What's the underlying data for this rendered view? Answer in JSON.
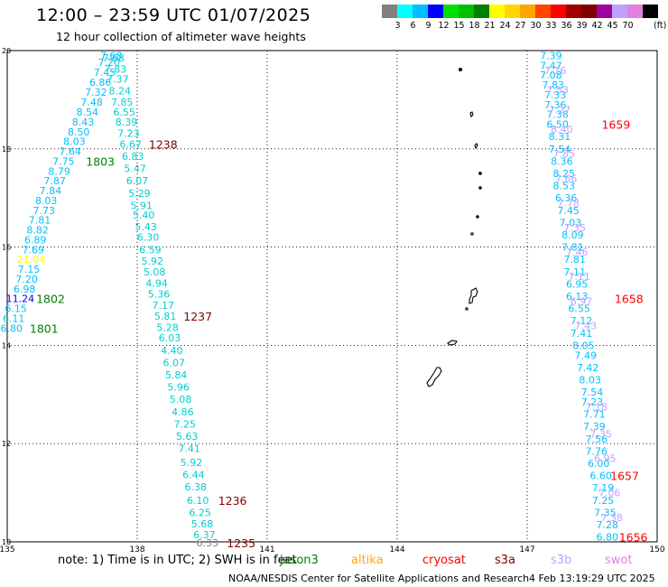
{
  "header": {
    "title": "12:00 – 23:59 UTC 01/07/2025",
    "subtitle": "12 hour collection of altimeter wave heights"
  },
  "colorbar": {
    "colors": [
      "#808080",
      "#00ffff",
      "#00bfff",
      "#0000ff",
      "#00e000",
      "#00c000",
      "#008000",
      "#ffff00",
      "#ffd700",
      "#ffa500",
      "#ff4500",
      "#ff0000",
      "#a00000",
      "#800000",
      "#a000a0",
      "#c0a0ff",
      "#e080e0",
      "#000000"
    ],
    "labels": [
      "3",
      "6",
      "9",
      "12",
      "15",
      "18",
      "21",
      "24",
      "27",
      "30",
      "33",
      "36",
      "39",
      "42",
      "45",
      "70"
    ],
    "unit": "(ft)"
  },
  "footer": {
    "note": "note:  1) Time is in UTC;  2) SWH is in feet",
    "satellites": [
      {
        "name": "jason3",
        "color": "#008000"
      },
      {
        "name": "altika",
        "color": "#ffa500"
      },
      {
        "name": "cryosat",
        "color": "#ff0000"
      },
      {
        "name": "s3a",
        "color": "#800000"
      },
      {
        "name": "s3b",
        "color": "#c0a0ff"
      },
      {
        "name": "swot",
        "color": "#e080e0"
      }
    ],
    "credit": "NOAA/NESDIS Center for Satellite Applications and Research",
    "timestamp": "4 Feb 13:19:29 UTC 2025"
  },
  "chart_data": {
    "type": "scatter",
    "xlim": [
      135,
      150
    ],
    "ylim": [
      10,
      20
    ],
    "x_ticks": [
      "135",
      "138",
      "141",
      "144",
      "147",
      "150"
    ],
    "y_ticks": [
      "10",
      "12",
      "14",
      "16",
      "18",
      "20"
    ],
    "grid": true,
    "tracks": [
      {
        "name": "track-1803-1801",
        "color": "#00bfff",
        "points": [
          {
            "lon": 137.4,
            "lat": 19.9,
            "v": "7.68"
          },
          {
            "lon": 137.35,
            "lat": 19.76,
            "v": "7.20"
          },
          {
            "lon": 137.25,
            "lat": 19.56,
            "v": "7.45"
          },
          {
            "lon": 137.15,
            "lat": 19.36,
            "v": "6.86"
          },
          {
            "lon": 137.05,
            "lat": 19.15,
            "v": "7.32"
          },
          {
            "lon": 136.95,
            "lat": 18.95,
            "v": "7.48"
          },
          {
            "lon": 136.85,
            "lat": 18.75,
            "v": "8.54"
          },
          {
            "lon": 136.75,
            "lat": 18.55,
            "v": "8.43"
          },
          {
            "lon": 136.65,
            "lat": 18.35,
            "v": "8.50"
          },
          {
            "lon": 136.55,
            "lat": 18.15,
            "v": "8.03"
          },
          {
            "lon": 136.45,
            "lat": 17.95,
            "v": "7.64"
          },
          {
            "lon": 136.3,
            "lat": 17.75,
            "v": "7.75"
          },
          {
            "lon": 136.2,
            "lat": 17.55,
            "v": "8.79"
          },
          {
            "lon": 136.1,
            "lat": 17.35,
            "v": "7.87"
          },
          {
            "lon": 136.0,
            "lat": 17.15,
            "v": "7.84"
          },
          {
            "lon": 135.9,
            "lat": 16.95,
            "v": "8.03"
          },
          {
            "lon": 135.85,
            "lat": 16.75,
            "v": "7.73"
          },
          {
            "lon": 135.75,
            "lat": 16.55,
            "v": "7.81"
          },
          {
            "lon": 135.7,
            "lat": 16.35,
            "v": "8.82"
          },
          {
            "lon": 135.65,
            "lat": 16.15,
            "v": "6.89"
          },
          {
            "lon": 135.6,
            "lat": 15.95,
            "v": "7.69"
          },
          {
            "lon": 135.55,
            "lat": 15.75,
            "v": "21.04",
            "c": "#ffff00"
          },
          {
            "lon": 135.5,
            "lat": 15.55,
            "v": "7.15"
          },
          {
            "lon": 135.45,
            "lat": 15.35,
            "v": "7.20"
          },
          {
            "lon": 135.4,
            "lat": 15.15,
            "v": "6.98"
          },
          {
            "lon": 135.3,
            "lat": 14.95,
            "v": "11.24",
            "c": "#0000ff"
          },
          {
            "lon": 135.2,
            "lat": 14.75,
            "v": "6.15"
          },
          {
            "lon": 135.15,
            "lat": 14.55,
            "v": "6.11"
          },
          {
            "lon": 135.1,
            "lat": 14.35,
            "v": "6.80"
          }
        ],
        "labels": [
          {
            "lon": 137.15,
            "lat": 17.75,
            "text": "1803",
            "c": "#008000"
          },
          {
            "lon": 136.0,
            "lat": 14.95,
            "text": "1802",
            "c": "#008000"
          },
          {
            "lon": 135.85,
            "lat": 14.35,
            "text": "1801",
            "c": "#008000"
          }
        ]
      },
      {
        "name": "track-1238-1235",
        "color": "#00ced1",
        "points": [
          {
            "lon": 137.45,
            "lat": 19.85,
            "v": "7.68"
          },
          {
            "lon": 137.5,
            "lat": 19.62,
            "v": "7.83"
          },
          {
            "lon": 137.55,
            "lat": 19.42,
            "v": "7.37"
          },
          {
            "lon": 137.6,
            "lat": 19.18,
            "v": "8.24"
          },
          {
            "lon": 137.65,
            "lat": 18.95,
            "v": "7.85"
          },
          {
            "lon": 137.7,
            "lat": 18.75,
            "v": "6.55"
          },
          {
            "lon": 137.75,
            "lat": 18.55,
            "v": "8.39"
          },
          {
            "lon": 137.8,
            "lat": 18.32,
            "v": "7.23"
          },
          {
            "lon": 137.85,
            "lat": 18.1,
            "v": "6.67"
          },
          {
            "lon": 137.9,
            "lat": 17.85,
            "v": "6.83"
          },
          {
            "lon": 137.95,
            "lat": 17.6,
            "v": "5.47"
          },
          {
            "lon": 138.0,
            "lat": 17.35,
            "v": "6.07"
          },
          {
            "lon": 138.05,
            "lat": 17.1,
            "v": "5.29"
          },
          {
            "lon": 138.1,
            "lat": 16.85,
            "v": "5.91"
          },
          {
            "lon": 138.15,
            "lat": 16.65,
            "v": "5.40"
          },
          {
            "lon": 138.2,
            "lat": 16.42,
            "v": "5.43"
          },
          {
            "lon": 138.25,
            "lat": 16.2,
            "v": "6.30"
          },
          {
            "lon": 138.3,
            "lat": 15.95,
            "v": "6.59"
          },
          {
            "lon": 138.35,
            "lat": 15.72,
            "v": "5.92"
          },
          {
            "lon": 138.4,
            "lat": 15.5,
            "v": "5.08"
          },
          {
            "lon": 138.45,
            "lat": 15.27,
            "v": "4.94"
          },
          {
            "lon": 138.5,
            "lat": 15.05,
            "v": "5.36"
          },
          {
            "lon": 138.6,
            "lat": 14.82,
            "v": "7.17"
          },
          {
            "lon": 138.65,
            "lat": 14.6,
            "v": "5.81"
          },
          {
            "lon": 138.7,
            "lat": 14.37,
            "v": "5.28"
          },
          {
            "lon": 138.75,
            "lat": 14.15,
            "v": "6.03"
          },
          {
            "lon": 138.8,
            "lat": 13.9,
            "v": "4.40"
          },
          {
            "lon": 138.85,
            "lat": 13.65,
            "v": "6.07"
          },
          {
            "lon": 138.9,
            "lat": 13.4,
            "v": "5.84"
          },
          {
            "lon": 138.95,
            "lat": 13.15,
            "v": "5.96"
          },
          {
            "lon": 139.0,
            "lat": 12.9,
            "v": "5.08"
          },
          {
            "lon": 139.05,
            "lat": 12.65,
            "v": "4.86"
          },
          {
            "lon": 139.1,
            "lat": 12.4,
            "v": "7.25"
          },
          {
            "lon": 139.15,
            "lat": 12.15,
            "v": "5.63"
          },
          {
            "lon": 139.2,
            "lat": 11.9,
            "v": "7.41"
          },
          {
            "lon": 139.25,
            "lat": 11.62,
            "v": "5.92"
          },
          {
            "lon": 139.3,
            "lat": 11.37,
            "v": "6.44"
          },
          {
            "lon": 139.35,
            "lat": 11.12,
            "v": "6.38"
          },
          {
            "lon": 139.4,
            "lat": 10.85,
            "v": "6.10"
          },
          {
            "lon": 139.45,
            "lat": 10.6,
            "v": "6.25"
          },
          {
            "lon": 139.5,
            "lat": 10.37,
            "v": "5.68"
          },
          {
            "lon": 139.55,
            "lat": 10.15,
            "v": "6.37"
          },
          {
            "lon": 139.62,
            "lat": 9.98,
            "v": "6.33",
            "c": "#808080"
          }
        ],
        "labels": [
          {
            "lon": 138.6,
            "lat": 18.1,
            "text": "1238",
            "c": "#800000"
          },
          {
            "lon": 139.4,
            "lat": 14.6,
            "text": "1237",
            "c": "#800000"
          },
          {
            "lon": 140.2,
            "lat": 10.85,
            "text": "1236",
            "c": "#800000"
          },
          {
            "lon": 140.4,
            "lat": 9.98,
            "text": "1235",
            "c": "#800000"
          }
        ]
      },
      {
        "name": "track-1659-1656-a",
        "color": "#00bfff",
        "points": [
          {
            "lon": 147.55,
            "lat": 19.9,
            "v": "7.39"
          },
          {
            "lon": 147.55,
            "lat": 19.7,
            "v": "7.47"
          },
          {
            "lon": 147.55,
            "lat": 19.5,
            "v": "7.08"
          },
          {
            "lon": 147.6,
            "lat": 19.3,
            "v": "7.83"
          },
          {
            "lon": 147.65,
            "lat": 19.1,
            "v": "7.33"
          },
          {
            "lon": 147.65,
            "lat": 18.9,
            "v": "7.36"
          },
          {
            "lon": 147.7,
            "lat": 18.7,
            "v": "7.38"
          },
          {
            "lon": 147.7,
            "lat": 18.5,
            "v": "6.50"
          },
          {
            "lon": 147.75,
            "lat": 18.25,
            "v": "8.31"
          },
          {
            "lon": 147.75,
            "lat": 18.0,
            "v": "7.54"
          },
          {
            "lon": 147.8,
            "lat": 17.75,
            "v": "8.36"
          },
          {
            "lon": 147.85,
            "lat": 17.5,
            "v": "8.25"
          },
          {
            "lon": 147.85,
            "lat": 17.25,
            "v": "8.53"
          },
          {
            "lon": 147.9,
            "lat": 17.0,
            "v": "6.36"
          },
          {
            "lon": 147.95,
            "lat": 16.75,
            "v": "7.45"
          },
          {
            "lon": 148.0,
            "lat": 16.5,
            "v": "7.03"
          },
          {
            "lon": 148.05,
            "lat": 16.25,
            "v": "8.09"
          },
          {
            "lon": 148.05,
            "lat": 16.0,
            "v": "7.81"
          },
          {
            "lon": 148.1,
            "lat": 15.75,
            "v": "7.81"
          },
          {
            "lon": 148.1,
            "lat": 15.5,
            "v": "7.11"
          },
          {
            "lon": 148.15,
            "lat": 15.25,
            "v": "6.95"
          },
          {
            "lon": 148.15,
            "lat": 15.0,
            "v": "6.13"
          },
          {
            "lon": 148.2,
            "lat": 14.75,
            "v": "6.55"
          },
          {
            "lon": 148.25,
            "lat": 14.5,
            "v": "7.12"
          },
          {
            "lon": 148.25,
            "lat": 14.25,
            "v": "7.41"
          },
          {
            "lon": 148.3,
            "lat": 14.0,
            "v": "8.05"
          },
          {
            "lon": 148.35,
            "lat": 13.8,
            "v": "7.49"
          },
          {
            "lon": 148.4,
            "lat": 13.55,
            "v": "7.42"
          },
          {
            "lon": 148.45,
            "lat": 13.3,
            "v": "8.03"
          },
          {
            "lon": 148.5,
            "lat": 13.05,
            "v": "7.54"
          },
          {
            "lon": 148.5,
            "lat": 12.85,
            "v": "7.23"
          },
          {
            "lon": 148.55,
            "lat": 12.6,
            "v": "7.71"
          },
          {
            "lon": 148.55,
            "lat": 12.35,
            "v": "7.39"
          },
          {
            "lon": 148.6,
            "lat": 12.1,
            "v": "7.56"
          },
          {
            "lon": 148.6,
            "lat": 11.85,
            "v": "7.76"
          },
          {
            "lon": 148.65,
            "lat": 11.6,
            "v": "6.00"
          },
          {
            "lon": 148.7,
            "lat": 11.35,
            "v": "6.60"
          },
          {
            "lon": 148.75,
            "lat": 11.1,
            "v": "7.19"
          },
          {
            "lon": 148.75,
            "lat": 10.85,
            "v": "7.25"
          },
          {
            "lon": 148.8,
            "lat": 10.6,
            "v": "7.35"
          },
          {
            "lon": 148.85,
            "lat": 10.35,
            "v": "7.28"
          },
          {
            "lon": 148.85,
            "lat": 10.1,
            "v": "6.80"
          }
        ],
        "labels": [
          {
            "lon": 149.05,
            "lat": 18.5,
            "text": "1659",
            "c": "#ff0000"
          },
          {
            "lon": 149.35,
            "lat": 14.95,
            "text": "1658",
            "c": "#ff0000"
          },
          {
            "lon": 149.25,
            "lat": 11.35,
            "text": "1657",
            "c": "#ff0000"
          },
          {
            "lon": 149.45,
            "lat": 10.1,
            "text": "1656",
            "c": "#ff0000"
          }
        ]
      },
      {
        "name": "track-1659-1656-b",
        "color": "#c0a0ff",
        "points": [
          {
            "lon": 147.65,
            "lat": 19.6,
            "v": "7.16"
          },
          {
            "lon": 147.7,
            "lat": 19.2,
            "v": "7.53"
          },
          {
            "lon": 147.75,
            "lat": 18.8,
            "v": "7.27"
          },
          {
            "lon": 147.8,
            "lat": 18.4,
            "v": "8.40"
          },
          {
            "lon": 147.85,
            "lat": 17.9,
            "v": "7.85"
          },
          {
            "lon": 147.9,
            "lat": 17.4,
            "v": "7.66"
          },
          {
            "lon": 147.95,
            "lat": 16.9,
            "v": "7.78"
          },
          {
            "lon": 148.1,
            "lat": 16.4,
            "v": "7.35"
          },
          {
            "lon": 148.15,
            "lat": 15.9,
            "v": "7.46"
          },
          {
            "lon": 148.2,
            "lat": 15.4,
            "v": "7.11"
          },
          {
            "lon": 148.25,
            "lat": 14.9,
            "v": "6.97"
          },
          {
            "lon": 148.35,
            "lat": 14.4,
            "v": "7.43"
          },
          {
            "lon": 148.6,
            "lat": 12.75,
            "v": "7.18"
          },
          {
            "lon": 148.7,
            "lat": 12.2,
            "v": "7.35"
          },
          {
            "lon": 148.8,
            "lat": 11.7,
            "v": "6.95"
          },
          {
            "lon": 148.9,
            "lat": 11.0,
            "v": "7.06"
          },
          {
            "lon": 148.95,
            "lat": 10.5,
            "v": "7.38"
          }
        ],
        "labels": []
      }
    ]
  }
}
